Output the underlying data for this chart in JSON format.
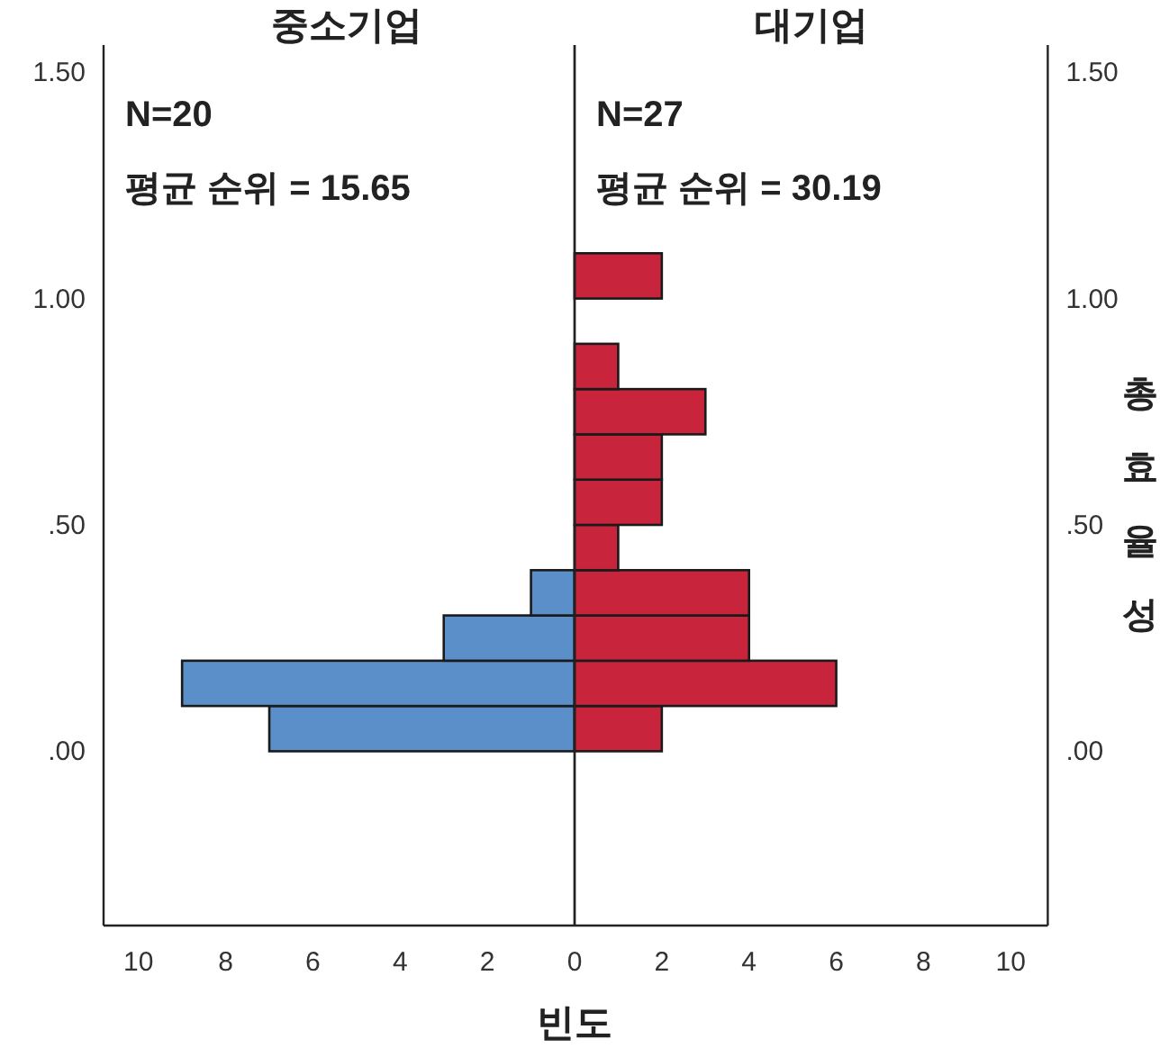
{
  "chart_data": [
    {
      "type": "histogram",
      "orientation": "horizontal",
      "title": "중소기업",
      "xlabel": "빈도",
      "annotations": [
        "N=20",
        "평균 순위 = 15.65"
      ],
      "bins": [
        0,
        0.1,
        0.2,
        0.3,
        0.4
      ],
      "values": [
        7,
        9,
        3,
        1
      ],
      "color": "#5b8fca",
      "xlim": [
        10.8,
        0
      ],
      "xticks": [
        10,
        8,
        6,
        4,
        2
      ],
      "ylim": [
        -0.385,
        1.56
      ],
      "yticks": [
        {
          "value": 0,
          "label": ".00"
        },
        {
          "value": 0.5,
          "label": ".50"
        },
        {
          "value": 1,
          "label": "1.00"
        },
        {
          "value": 1.5,
          "label": "1.50"
        }
      ]
    },
    {
      "type": "histogram",
      "orientation": "horizontal",
      "title": "대기업",
      "ylabel": "총효율성",
      "annotations": [
        "N=27",
        "평균 순위 = 30.19"
      ],
      "bins": [
        0,
        0.1,
        0.2,
        0.3,
        0.4,
        0.5,
        0.6,
        0.7,
        0.8,
        0.9,
        1.0,
        1.1
      ],
      "values": [
        2,
        6,
        4,
        4,
        1,
        2,
        2,
        3,
        1,
        0,
        2
      ],
      "color": "#c8243c",
      "xlim": [
        0,
        10.85
      ],
      "xticks": [
        0,
        2,
        4,
        6,
        8,
        10
      ],
      "ylim": [
        -0.385,
        1.56
      ],
      "yticks": [
        {
          "value": 0,
          "label": ".00"
        },
        {
          "value": 0.5,
          "label": ".50"
        },
        {
          "value": 1,
          "label": "1.00"
        },
        {
          "value": 1.5,
          "label": "1.50"
        }
      ]
    }
  ]
}
